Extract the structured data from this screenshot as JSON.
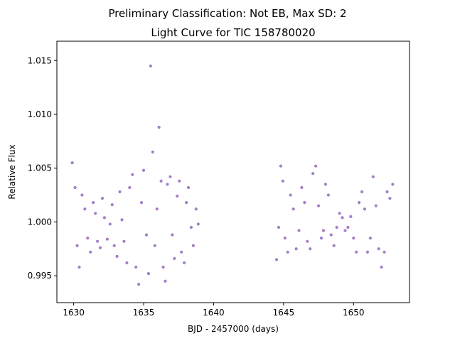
{
  "suptitle": "Preliminary Classification: Not EB, Max SD: 2",
  "chart_data": {
    "type": "scatter",
    "title": "Light Curve for TIC 158780020",
    "xlabel": "BJD - 2457000 (days)",
    "ylabel": "Relative Flux",
    "xlim": [
      1628.8,
      1654.0
    ],
    "ylim": [
      0.9925,
      1.0168
    ],
    "xticks": [
      1630,
      1635,
      1640,
      1645,
      1650
    ],
    "xtick_labels": [
      "1630",
      "1635",
      "1640",
      "1645",
      "1650"
    ],
    "yticks": [
      0.995,
      1.0,
      1.005,
      1.01,
      1.015
    ],
    "ytick_labels": [
      "0.995",
      "1.000",
      "1.005",
      "1.010",
      "1.015"
    ],
    "grid": false,
    "marker_color": "#9467bd",
    "series": [
      {
        "segment": 1,
        "x": [
          1629.9,
          1630.1,
          1630.25,
          1630.4,
          1630.6,
          1630.8,
          1631.0,
          1631.2,
          1631.4,
          1631.55,
          1631.7,
          1631.9,
          1632.05,
          1632.2,
          1632.4,
          1632.6,
          1632.75,
          1632.9,
          1633.1,
          1633.3,
          1633.45,
          1633.6,
          1633.8,
          1634.0,
          1634.2,
          1634.45,
          1634.65,
          1634.85,
          1635.0,
          1635.2,
          1635.35,
          1635.5,
          1635.65,
          1635.8,
          1635.95,
          1636.1,
          1636.25,
          1636.4,
          1636.55,
          1636.7,
          1636.9,
          1637.05,
          1637.2,
          1637.4,
          1637.55,
          1637.7,
          1637.9,
          1638.05,
          1638.2,
          1638.4,
          1638.55,
          1638.75,
          1638.9
        ],
        "y": [
          1.0055,
          1.0032,
          0.9978,
          0.9958,
          1.0025,
          1.0012,
          0.9985,
          0.9972,
          1.0018,
          1.0008,
          0.9982,
          0.9976,
          1.0022,
          1.0004,
          0.9984,
          0.9998,
          1.0016,
          0.9978,
          0.9968,
          1.0028,
          1.0002,
          0.9982,
          0.9962,
          1.0032,
          1.0044,
          0.9958,
          0.9942,
          1.0018,
          1.0048,
          0.9988,
          0.9952,
          1.0145,
          1.0065,
          0.9978,
          1.0012,
          1.0088,
          1.0038,
          0.9958,
          0.9945,
          1.0035,
          1.0042,
          0.9988,
          0.9966,
          1.0024,
          1.0038,
          0.9972,
          0.9962,
          1.0018,
          1.0032,
          0.9995,
          0.9978,
          1.0012,
          0.9998
        ]
      },
      {
        "segment": 2,
        "x": [
          1644.5,
          1644.65,
          1644.8,
          1644.95,
          1645.1,
          1645.3,
          1645.5,
          1645.7,
          1645.9,
          1646.1,
          1646.3,
          1646.5,
          1646.7,
          1646.9,
          1647.1,
          1647.3,
          1647.5,
          1647.7,
          1647.85,
          1648.0,
          1648.2,
          1648.4,
          1648.6,
          1648.8,
          1649.0,
          1649.2,
          1649.4,
          1649.6,
          1649.8,
          1650.0,
          1650.2,
          1650.4,
          1650.6,
          1650.8,
          1651.0,
          1651.2,
          1651.4,
          1651.6,
          1651.8,
          1652.0,
          1652.2,
          1652.4,
          1652.6,
          1652.8
        ],
        "y": [
          0.9965,
          0.9995,
          1.0052,
          1.0038,
          0.9985,
          0.9972,
          1.0025,
          1.0012,
          0.9975,
          0.9992,
          1.0032,
          1.0018,
          0.9982,
          0.9975,
          1.0045,
          1.0052,
          1.0015,
          0.9985,
          0.9992,
          1.0035,
          1.0025,
          0.9988,
          0.9978,
          0.9995,
          1.0008,
          1.0004,
          0.9992,
          0.9995,
          1.0005,
          0.9985,
          0.9972,
          1.0018,
          1.0028,
          1.0012,
          0.9972,
          0.9985,
          1.0042,
          1.0015,
          0.9975,
          0.9958,
          0.9972,
          1.0028,
          1.0022,
          1.0035
        ]
      }
    ]
  }
}
